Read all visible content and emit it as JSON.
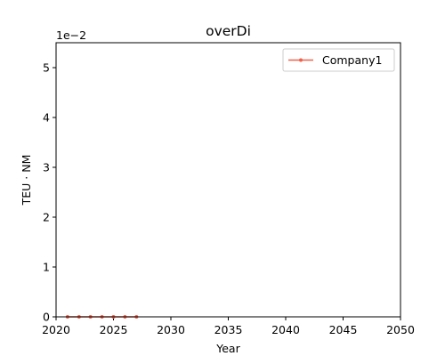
{
  "chart_data": {
    "type": "line",
    "title": "overDi",
    "xlabel": "Year",
    "ylabel": "TEU · NM",
    "y_offset_text": "1e−2",
    "xlim": [
      2020,
      2050
    ],
    "ylim": [
      0,
      0.055
    ],
    "x_ticks": [
      2020,
      2025,
      2030,
      2035,
      2040,
      2045,
      2050
    ],
    "y_ticks": [
      0,
      0.01,
      0.02,
      0.03,
      0.04,
      0.05
    ],
    "y_tick_labels": [
      "0",
      "1",
      "2",
      "3",
      "4",
      "5"
    ],
    "legend_position": "upper right",
    "grid": false,
    "series": [
      {
        "name": "Company1",
        "color": "#f0604a",
        "marker": "circle",
        "x": [
          2021,
          2022,
          2023,
          2024,
          2025,
          2026,
          2027
        ],
        "y": [
          0,
          0,
          0,
          0,
          0,
          0,
          0
        ]
      }
    ]
  }
}
